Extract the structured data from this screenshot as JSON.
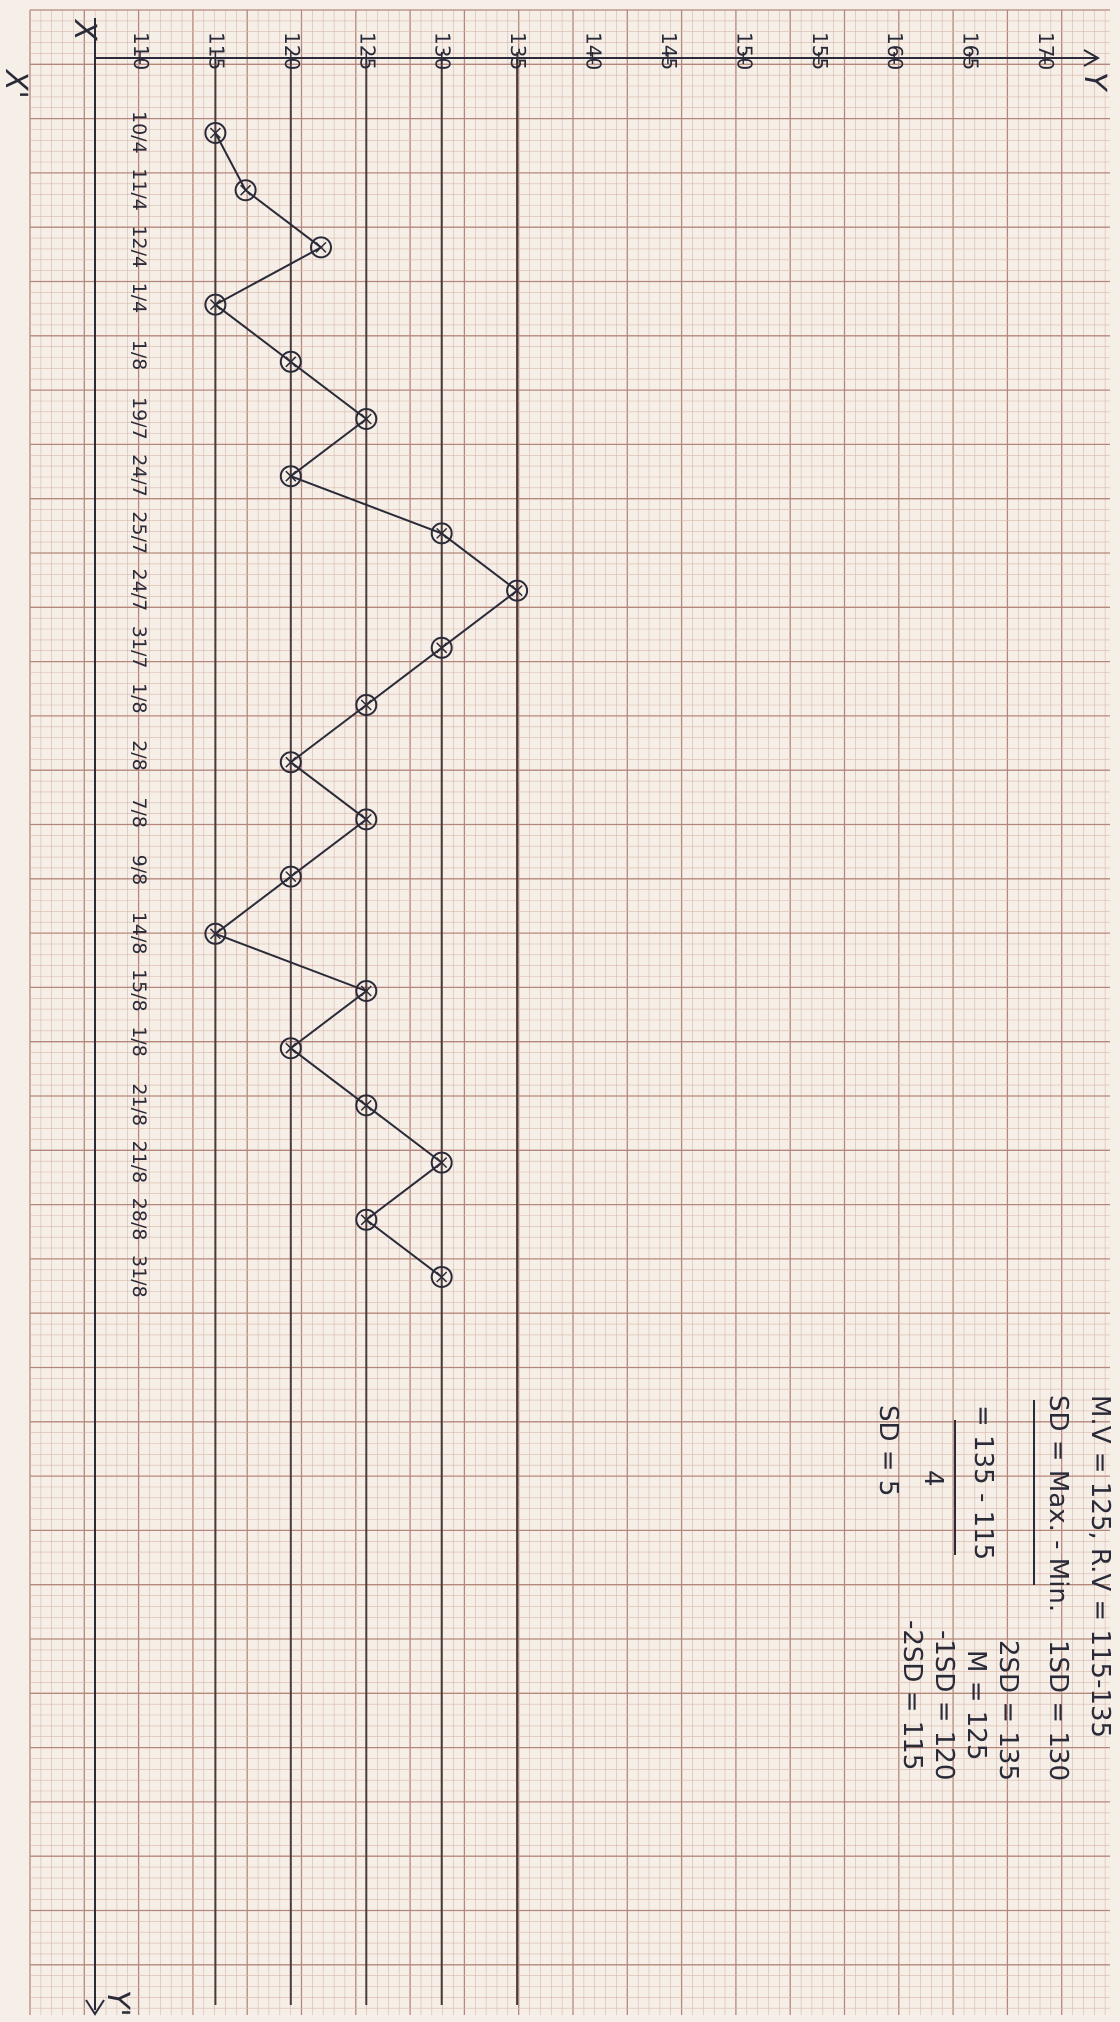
{
  "chart_data": {
    "type": "line",
    "title": "",
    "xlabel": "X",
    "ylabel": "Y",
    "x_axis_top_label": "X",
    "y_axis_right_label": "Y",
    "x_axis_bottom_label": "X'",
    "y_axis_left_label": "Y'",
    "ylim": [
      110,
      170
    ],
    "y_ticks": [
      "110",
      "115",
      "120",
      "125",
      "130",
      "135",
      "140",
      "145",
      "150",
      "155",
      "160",
      "165",
      "170"
    ],
    "categories": [
      "10/4",
      "11/4",
      "12/4",
      "1/4",
      "1/8",
      "19/7",
      "24/7",
      "25/7",
      "24/7",
      "31/7",
      "1/8",
      "2/8",
      "7/8",
      "9/8",
      "14/8",
      "15/8",
      "1/8",
      "21/8",
      "21/8",
      "28/8",
      "31/8"
    ],
    "series": [
      {
        "values": [
          115,
          117,
          122,
          115,
          120,
          125,
          120,
          130,
          135,
          130,
          125,
          120,
          125,
          120,
          115,
          125,
          120,
          125,
          130,
          125,
          130
        ]
      }
    ],
    "reference_lines": [
      115,
      120,
      125,
      130,
      135
    ],
    "grid": true,
    "colors": {
      "paper": "#f5efe8",
      "minor_grid": "#d9b7aa",
      "major_grid": "#b5877a",
      "ink": "#2a2a38"
    }
  },
  "notes": {
    "mv": "M.V = 125, R.V = 115-135",
    "sd_formula": "SD = Max. - Min.",
    "fraction_line": "= 135 - 115",
    "denominator": "4",
    "sd_result": "SD = 5",
    "sd_list": [
      "1SD = 130",
      "2SD = 135",
      "M = 125",
      "-1SD = 120",
      "-2SD = 115"
    ]
  }
}
